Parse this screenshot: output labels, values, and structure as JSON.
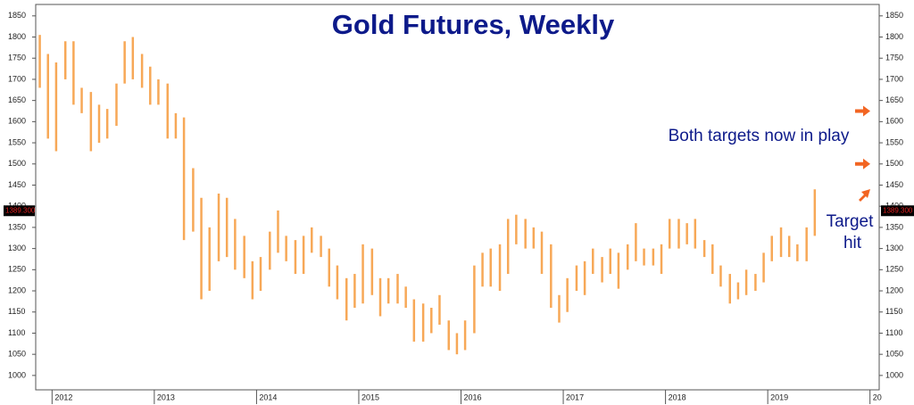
{
  "chart_data": {
    "type": "range_bar",
    "title": "Gold Futures, Weekly",
    "color": "#f7a857",
    "x": [
      2011.88,
      2011.96,
      2012.04,
      2012.13,
      2012.21,
      2012.29,
      2012.38,
      2012.46,
      2012.54,
      2012.63,
      2012.71,
      2012.79,
      2012.88,
      2012.96,
      2013.04,
      2013.13,
      2013.21,
      2013.29,
      2013.38,
      2013.46,
      2013.54,
      2013.63,
      2013.71,
      2013.79,
      2013.88,
      2013.96,
      2014.04,
      2014.13,
      2014.21,
      2014.29,
      2014.38,
      2014.46,
      2014.54,
      2014.63,
      2014.71,
      2014.79,
      2014.88,
      2014.96,
      2015.04,
      2015.13,
      2015.21,
      2015.29,
      2015.38,
      2015.46,
      2015.54,
      2015.63,
      2015.71,
      2015.79,
      2015.88,
      2015.96,
      2016.04,
      2016.13,
      2016.21,
      2016.29,
      2016.38,
      2016.46,
      2016.54,
      2016.63,
      2016.71,
      2016.79,
      2016.88,
      2016.96,
      2017.04,
      2017.13,
      2017.21,
      2017.29,
      2017.38,
      2017.46,
      2017.54,
      2017.63,
      2017.71,
      2017.79,
      2017.88,
      2017.96,
      2018.04,
      2018.13,
      2018.21,
      2018.29,
      2018.38,
      2018.46,
      2018.54,
      2018.63,
      2018.71,
      2018.79,
      2018.88,
      2018.96,
      2019.04,
      2019.13,
      2019.21,
      2019.29,
      2019.38,
      2019.46
    ],
    "high": [
      1805,
      1760,
      1740,
      1790,
      1790,
      1680,
      1670,
      1640,
      1630,
      1690,
      1790,
      1800,
      1760,
      1730,
      1700,
      1690,
      1620,
      1610,
      1490,
      1420,
      1350,
      1430,
      1420,
      1370,
      1330,
      1270,
      1280,
      1340,
      1390,
      1330,
      1320,
      1330,
      1350,
      1330,
      1300,
      1260,
      1230,
      1240,
      1310,
      1300,
      1230,
      1230,
      1240,
      1210,
      1180,
      1170,
      1160,
      1190,
      1130,
      1100,
      1130,
      1260,
      1290,
      1300,
      1310,
      1370,
      1380,
      1370,
      1350,
      1340,
      1310,
      1190,
      1230,
      1260,
      1270,
      1300,
      1280,
      1300,
      1290,
      1310,
      1360,
      1300,
      1300,
      1310,
      1370,
      1370,
      1360,
      1370,
      1320,
      1310,
      1260,
      1240,
      1220,
      1250,
      1240,
      1290,
      1330,
      1350,
      1330,
      1310,
      1350,
      1440
    ],
    "low": [
      1680,
      1560,
      1530,
      1700,
      1640,
      1620,
      1530,
      1550,
      1560,
      1590,
      1690,
      1700,
      1680,
      1640,
      1640,
      1560,
      1560,
      1320,
      1340,
      1180,
      1200,
      1270,
      1280,
      1250,
      1230,
      1180,
      1200,
      1250,
      1290,
      1270,
      1240,
      1240,
      1290,
      1280,
      1210,
      1180,
      1130,
      1160,
      1170,
      1190,
      1140,
      1170,
      1170,
      1160,
      1080,
      1080,
      1100,
      1120,
      1060,
      1050,
      1060,
      1100,
      1210,
      1210,
      1200,
      1240,
      1310,
      1300,
      1300,
      1240,
      1160,
      1125,
      1150,
      1200,
      1190,
      1240,
      1220,
      1240,
      1205,
      1250,
      1270,
      1260,
      1260,
      1240,
      1300,
      1300,
      1310,
      1300,
      1280,
      1240,
      1210,
      1170,
      1180,
      1190,
      1200,
      1220,
      1270,
      1280,
      1280,
      1270,
      1270,
      1330
    ],
    "ylim": [
      966,
      1877
    ],
    "yticks": [
      1000,
      1050,
      1100,
      1150,
      1200,
      1250,
      1300,
      1350,
      1400,
      1450,
      1500,
      1550,
      1600,
      1650,
      1700,
      1750,
      1800,
      1850
    ],
    "xlim": [
      2011.84,
      2020.09
    ],
    "xticks": [
      2012,
      2013,
      2014,
      2015,
      2016,
      2017,
      2018,
      2019,
      {
        "value": 2020,
        "label": "20"
      }
    ],
    "grid": false,
    "last_price": {
      "value": 1389.3,
      "label": "1389.300"
    },
    "target_arrows": [
      1625,
      1500,
      1430
    ],
    "arrow_color": "#f26522",
    "annotations": [
      "Both targets now in play",
      "Target",
      "hit"
    ]
  }
}
